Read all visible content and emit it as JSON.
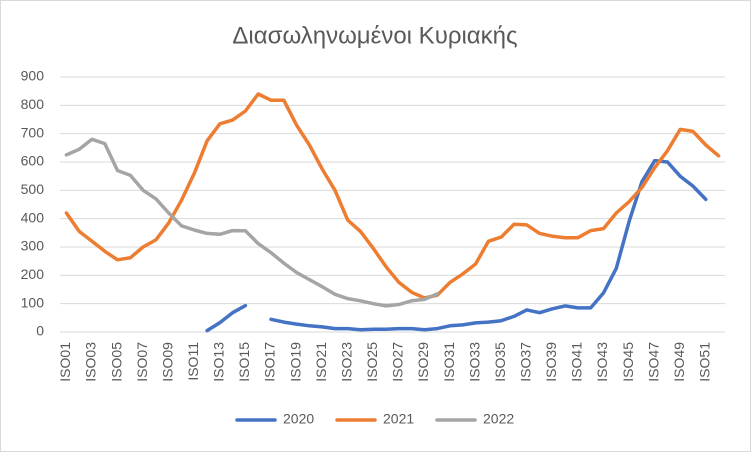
{
  "chart_data": {
    "type": "line",
    "title": "Διασωληνωμένοι Κυριακής",
    "categories": [
      "ISO01",
      null,
      "ISO03",
      null,
      "ISO05",
      null,
      "ISO07",
      null,
      "ISO09",
      null,
      "ISO11",
      null,
      "ISO13",
      null,
      "ISO15",
      null,
      "ISO17",
      null,
      "ISO19",
      null,
      "ISO21",
      null,
      "ISO23",
      null,
      "ISO25",
      null,
      "ISO27",
      null,
      "ISO29",
      null,
      "ISO31",
      null,
      "ISO33",
      null,
      "ISO35",
      null,
      "ISO37",
      null,
      "ISO39",
      null,
      "ISO41",
      null,
      "ISO43",
      null,
      "ISO45",
      null,
      "ISO47",
      null,
      "ISO49",
      null,
      "ISO51",
      null
    ],
    "series": [
      {
        "name": "2020",
        "color": "#4472c4",
        "values": [
          null,
          null,
          null,
          null,
          null,
          null,
          null,
          null,
          null,
          null,
          null,
          5,
          33,
          68,
          93,
          null,
          45,
          35,
          28,
          22,
          18,
          12,
          12,
          8,
          10,
          10,
          12,
          12,
          8,
          12,
          22,
          25,
          32,
          35,
          40,
          55,
          78,
          68,
          82,
          92,
          85,
          85,
          138,
          225,
          390,
          530,
          605,
          600,
          550,
          515,
          468,
          null
        ]
      },
      {
        "name": "2021",
        "color": "#ed7d31",
        "values": [
          420,
          355,
          320,
          285,
          255,
          262,
          300,
          325,
          385,
          465,
          560,
          675,
          735,
          748,
          780,
          840,
          818,
          818,
          730,
          660,
          575,
          500,
          395,
          355,
          295,
          230,
          175,
          140,
          120,
          130,
          175,
          205,
          240,
          320,
          335,
          380,
          378,
          348,
          338,
          333,
          333,
          358,
          365,
          420,
          460,
          510,
          580,
          640,
          715,
          708,
          660,
          622
        ]
      },
      {
        "name": "2022",
        "color": "#a5a5a5",
        "values": [
          625,
          645,
          680,
          665,
          570,
          553,
          500,
          470,
          420,
          375,
          360,
          348,
          345,
          358,
          357,
          312,
          280,
          243,
          210,
          185,
          160,
          133,
          118,
          110,
          100,
          92,
          97,
          110,
          115,
          135,
          null,
          null,
          null,
          null,
          null,
          null,
          null,
          null,
          null,
          null,
          null,
          null,
          null,
          null,
          null,
          null,
          null,
          null,
          null,
          null,
          null,
          null
        ]
      }
    ],
    "ylim": [
      0,
      900
    ],
    "yticks": [
      0,
      100,
      200,
      300,
      400,
      500,
      600,
      700,
      800,
      900
    ],
    "grid": true,
    "legend": "bottom"
  }
}
